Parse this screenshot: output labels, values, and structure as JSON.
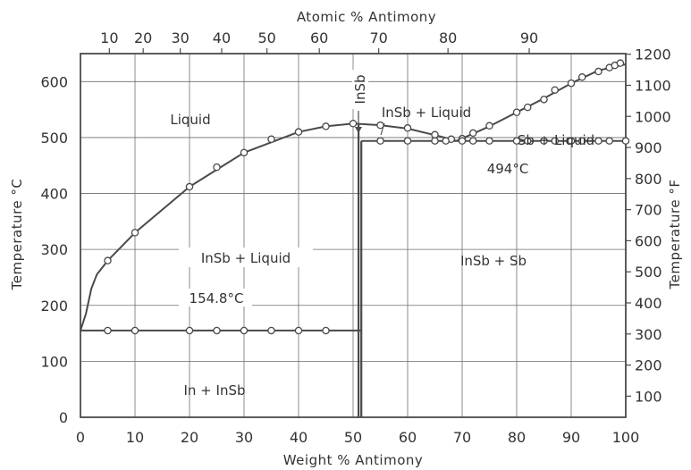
{
  "chart_data": {
    "type": "line",
    "title": "",
    "xlabel": "Weight % Antimony",
    "x2label": "Atomic % Antimony",
    "ylabel": "Temperature °C",
    "y2label": "Temperature °F",
    "xlim": [
      0,
      100
    ],
    "ylim": [
      0,
      650
    ],
    "y2lim": [
      32,
      1202
    ],
    "x_ticks": [
      0,
      10,
      20,
      30,
      40,
      50,
      60,
      70,
      80,
      90,
      100
    ],
    "x_tick_labels": [
      "0",
      "10",
      "20",
      "30",
      "40",
      "50",
      "60",
      "70",
      "80",
      "90",
      "100"
    ],
    "x2_ticks": [
      {
        "label": "10",
        "wt": 5.3
      },
      {
        "label": "20",
        "wt": 11.5
      },
      {
        "label": "30",
        "wt": 18.3
      },
      {
        "label": "40",
        "wt": 25.9
      },
      {
        "label": "50",
        "wt": 34.2
      },
      {
        "label": "60",
        "wt": 43.8
      },
      {
        "label": "70",
        "wt": 54.7
      },
      {
        "label": "80",
        "wt": 67.4
      },
      {
        "label": "90",
        "wt": 82.3
      }
    ],
    "y_ticks": [
      0,
      100,
      200,
      300,
      400,
      500,
      600
    ],
    "y_tick_labels": [
      "0",
      "100",
      "200",
      "300",
      "400",
      "500",
      "600"
    ],
    "y2_ticks": [
      100,
      200,
      300,
      400,
      500,
      600,
      700,
      800,
      900,
      1000,
      1100,
      1200
    ],
    "y2_tick_labels": [
      "100",
      "200",
      "300",
      "400",
      "500",
      "600",
      "700",
      "800",
      "900",
      "1000",
      "1100",
      "1200"
    ],
    "grid": true,
    "series": [
      {
        "line": [
          [
            0,
            155
          ],
          [
            1,
            185
          ],
          [
            2,
            230
          ],
          [
            3,
            255
          ],
          [
            5,
            280
          ],
          [
            10,
            330
          ],
          [
            20,
            412
          ],
          [
            30,
            473
          ],
          [
            40,
            510
          ],
          [
            45,
            520
          ],
          [
            50,
            525
          ],
          [
            55,
            522
          ],
          [
            60,
            516
          ],
          [
            66,
            502
          ],
          [
            69,
            494
          ]
        ],
        "points": [
          [
            5,
            280
          ],
          [
            10,
            330
          ],
          [
            20,
            412
          ],
          [
            25,
            447
          ],
          [
            30,
            473
          ],
          [
            35,
            497
          ],
          [
            40,
            510
          ],
          [
            45,
            520
          ],
          [
            50,
            525
          ],
          [
            55,
            522
          ],
          [
            60,
            517
          ],
          [
            65,
            505
          ],
          [
            68,
            497
          ]
        ]
      },
      {
        "line": [
          [
            69,
            494
          ],
          [
            75,
            520
          ],
          [
            80,
            545
          ],
          [
            85,
            570
          ],
          [
            90,
            597
          ],
          [
            95,
            620
          ],
          [
            100,
            631
          ]
        ],
        "points": [
          [
            70,
            498
          ],
          [
            72,
            508
          ],
          [
            75,
            521
          ],
          [
            80,
            545
          ],
          [
            82,
            554
          ],
          [
            85,
            568
          ],
          [
            87,
            585
          ],
          [
            90,
            597
          ],
          [
            92,
            608
          ],
          [
            95,
            618
          ],
          [
            97,
            625
          ],
          [
            98,
            629
          ],
          [
            99,
            633
          ]
        ]
      },
      {
        "line": [
          [
            0,
            155
          ],
          [
            51.5,
            155
          ]
        ],
        "points": [
          [
            5,
            155
          ],
          [
            10,
            155
          ],
          [
            20,
            155
          ],
          [
            25,
            155
          ],
          [
            30,
            155
          ],
          [
            35,
            155
          ],
          [
            40,
            155
          ],
          [
            45,
            155
          ]
        ]
      },
      {
        "line": [
          [
            51.5,
            494
          ],
          [
            100,
            494
          ]
        ],
        "points": [
          [
            55,
            494
          ],
          [
            60,
            494
          ],
          [
            65,
            494
          ],
          [
            67,
            494
          ],
          [
            70,
            494
          ],
          [
            72,
            494
          ],
          [
            75,
            494
          ],
          [
            80,
            494
          ],
          [
            82,
            494
          ],
          [
            85,
            494
          ],
          [
            87,
            494
          ],
          [
            90,
            494
          ],
          [
            92,
            494
          ],
          [
            95,
            494
          ],
          [
            97,
            494
          ],
          [
            100,
            494
          ]
        ]
      },
      {
        "line": [
          [
            51.5,
            0
          ],
          [
            51.5,
            494
          ]
        ],
        "points": []
      },
      {
        "line": [
          [
            51,
            525
          ],
          [
            51,
            0
          ]
        ],
        "points": []
      }
    ],
    "annotations": {
      "liquid": "Liquid",
      "insb_liquid_upper": "InSb + Liquid",
      "sb_liquid": "Sb + Liquid",
      "insb_liquid_lower": "InSb + Liquid",
      "insb_sb": "InSb + Sb",
      "in_insb": "In + InSb",
      "eutectic_low": "154.8°C",
      "eutectic_high": "494°C",
      "compound": "InSb"
    }
  }
}
